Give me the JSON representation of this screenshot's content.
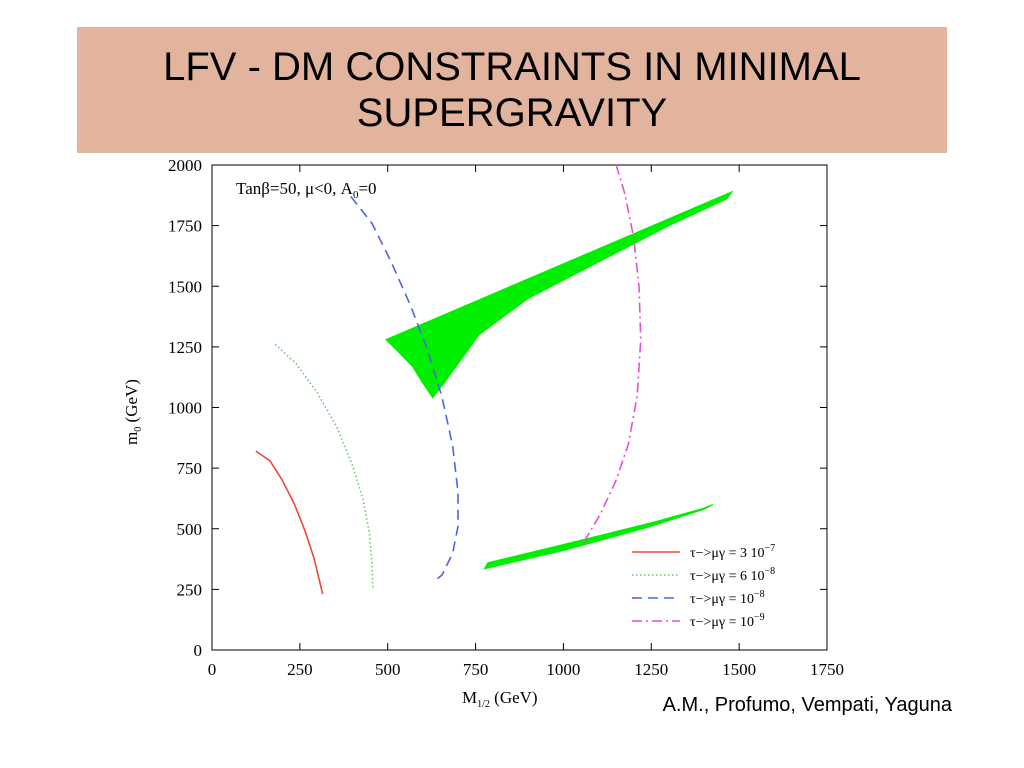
{
  "slide": {
    "title": "LFV - DM CONSTRAINTS IN MINIMAL\nSUPERGRAVITY",
    "credit": "A.M., Profumo, Vempati, Yaguna"
  },
  "chart_data": {
    "type": "line",
    "annotation_parts": {
      "prefix": "Tanβ=50, μ<0, A",
      "subscript": "0",
      "suffix": "=0"
    },
    "xlabel": {
      "main": "M",
      "sub": "1/2",
      "tail": " (GeV)"
    },
    "ylabel": {
      "main": "m",
      "sub": "0",
      "tail": " (GeV)"
    },
    "xlim": [
      0,
      1750
    ],
    "ylim": [
      0,
      2000
    ],
    "xticks": [
      0,
      250,
      500,
      750,
      1000,
      1250,
      1500,
      1750
    ],
    "yticks": [
      0,
      250,
      500,
      750,
      1000,
      1250,
      1500,
      1750,
      2000
    ],
    "grid": false,
    "legend_position": "bottom-right",
    "series": [
      {
        "name": "τ−>μγ = 3 10",
        "exponent": "−7",
        "color": "#f0473e",
        "style": "solid",
        "x": [
          125,
          165,
          200,
          235,
          265,
          290,
          305,
          315
        ],
        "y": [
          820,
          780,
          700,
          600,
          490,
          380,
          290,
          230
        ]
      },
      {
        "name": "τ−>μγ = 6 10",
        "exponent": "−8",
        "color": "#6cc866",
        "style": "dotted",
        "x": [
          180,
          240,
          300,
          355,
          400,
          430,
          448,
          455,
          458
        ],
        "y": [
          1260,
          1180,
          1060,
          920,
          760,
          620,
          480,
          360,
          250
        ]
      },
      {
        "name": "τ−>μγ = 10",
        "exponent": "−8",
        "color": "#4f63e8",
        "style": "dashed",
        "x": [
          395,
          455,
          510,
          565,
          615,
          655,
          685,
          700,
          700,
          685,
          655,
          630
        ],
        "y": [
          1870,
          1760,
          1600,
          1420,
          1230,
          1040,
          840,
          650,
          510,
          400,
          310,
          280
        ]
      },
      {
        "name": "τ−>μγ = 10",
        "exponent": "−9",
        "color": "#e74fd8",
        "style": "dashdot",
        "x": [
          1150,
          1175,
          1200,
          1215,
          1220,
          1210,
          1185,
          1150,
          1105,
          1060
        ],
        "y": [
          2000,
          1880,
          1700,
          1500,
          1280,
          1050,
          850,
          700,
          560,
          450
        ]
      }
    ],
    "regions": [
      {
        "name": "dm-region-upper",
        "color": "#00ee00",
        "x": [
          495,
          1480,
          1465,
          1300,
          1100,
          900,
          760,
          700,
          660,
          628,
          600,
          570,
          530
        ],
        "y": [
          1280,
          1890,
          1860,
          1750,
          1600,
          1450,
          1300,
          1180,
          1100,
          1040,
          1100,
          1170,
          1230
        ]
      },
      {
        "name": "dm-region-lower",
        "color": "#00ee00",
        "x": [
          775,
          1000,
          1250,
          1400,
          1425,
          1400,
          1250,
          1000,
          785
        ],
        "y": [
          335,
          410,
          510,
          580,
          600,
          585,
          525,
          435,
          360
        ]
      }
    ]
  }
}
